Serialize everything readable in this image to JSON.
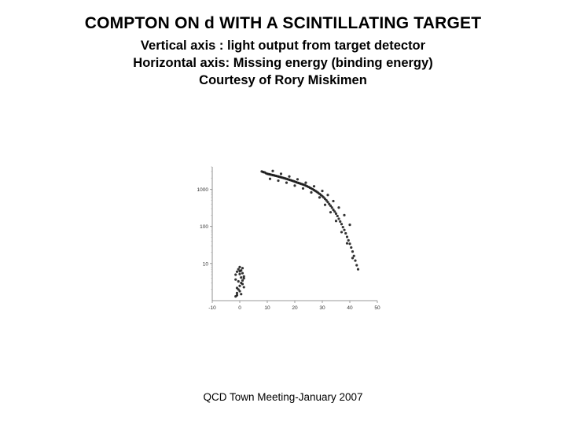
{
  "slide": {
    "title": "COMPTON ON d WITH A SCINTILLATING TARGET",
    "subtitle_lines": [
      "Vertical axis : light output from target detector",
      "Horizontal axis: Missing energy (binding energy)",
      "Courtesy of Rory Miskimen"
    ],
    "footer": "QCD Town Meeting-January 2007"
  },
  "chart_data": {
    "type": "scatter",
    "title": "",
    "xlabel": "",
    "ylabel": "",
    "xlim": [
      -10,
      50
    ],
    "ylim": [
      1,
      4000
    ],
    "y_scale": "log",
    "x_ticks": [
      -10,
      0,
      10,
      20,
      30,
      40,
      50
    ],
    "x_tick_labels": [
      "-10",
      "0",
      "10",
      "20",
      "30",
      "40",
      "50"
    ],
    "y_ticks": [
      10,
      100,
      1000
    ],
    "y_tick_labels": [
      "10",
      "100",
      "1000"
    ],
    "grid": false,
    "point_color": "#111111",
    "series": [
      {
        "values_xy": [
          [
            8,
            3000
          ],
          [
            8.5,
            2900
          ],
          [
            9,
            2850
          ],
          [
            9.5,
            2700
          ],
          [
            10,
            2600
          ],
          [
            10.5,
            2550
          ],
          [
            11,
            2500
          ],
          [
            11.5,
            2450
          ],
          [
            12,
            2400
          ],
          [
            12.5,
            2350
          ],
          [
            13,
            2300
          ],
          [
            13.5,
            2250
          ],
          [
            14,
            2200
          ],
          [
            14.5,
            2150
          ],
          [
            15,
            2100
          ],
          [
            15.5,
            2050
          ],
          [
            16,
            2000
          ],
          [
            16.5,
            1950
          ],
          [
            17,
            1900
          ],
          [
            17.5,
            1850
          ],
          [
            18,
            1800
          ],
          [
            18.5,
            1750
          ],
          [
            19,
            1700
          ],
          [
            19.5,
            1650
          ],
          [
            20,
            1600
          ],
          [
            20.5,
            1550
          ],
          [
            21,
            1500
          ],
          [
            21.5,
            1460
          ],
          [
            22,
            1420
          ],
          [
            22.5,
            1380
          ],
          [
            23,
            1340
          ],
          [
            23.5,
            1300
          ],
          [
            24,
            1250
          ],
          [
            24.5,
            1200
          ],
          [
            25,
            1150
          ],
          [
            25.5,
            1100
          ],
          [
            26,
            1050
          ],
          [
            26.5,
            1000
          ],
          [
            27,
            950
          ],
          [
            27.5,
            900
          ],
          [
            28,
            850
          ],
          [
            28.5,
            800
          ],
          [
            29,
            750
          ],
          [
            29.5,
            700
          ],
          [
            30,
            650
          ],
          [
            30.5,
            600
          ],
          [
            31,
            550
          ],
          [
            31.5,
            500
          ],
          [
            32,
            450
          ],
          [
            32.5,
            400
          ],
          [
            33,
            360
          ],
          [
            33.5,
            320
          ],
          [
            34,
            280
          ],
          [
            34.5,
            250
          ],
          [
            35,
            220
          ],
          [
            35.5,
            190
          ],
          [
            36,
            160
          ],
          [
            36.5,
            135
          ],
          [
            37,
            115
          ],
          [
            37.5,
            95
          ],
          [
            38,
            80
          ],
          [
            38.5,
            65
          ],
          [
            39,
            52
          ],
          [
            39.5,
            42
          ],
          [
            40,
            34
          ],
          [
            40.5,
            27
          ],
          [
            41,
            21
          ],
          [
            41.5,
            16
          ],
          [
            42,
            12
          ],
          [
            42.5,
            9
          ],
          [
            43,
            7
          ],
          [
            12,
            3100
          ],
          [
            15,
            2600
          ],
          [
            18,
            2200
          ],
          [
            21,
            1850
          ],
          [
            24,
            1500
          ],
          [
            27,
            1200
          ],
          [
            30,
            900
          ],
          [
            32,
            700
          ],
          [
            34,
            480
          ],
          [
            36,
            320
          ],
          [
            38,
            200
          ],
          [
            40,
            110
          ],
          [
            11,
            1900
          ],
          [
            14,
            1700
          ],
          [
            17,
            1500
          ],
          [
            20,
            1250
          ],
          [
            23,
            1050
          ],
          [
            26,
            820
          ],
          [
            29,
            600
          ],
          [
            31,
            380
          ],
          [
            33,
            240
          ],
          [
            35,
            140
          ],
          [
            37,
            70
          ],
          [
            39,
            35
          ],
          [
            41,
            14
          ],
          [
            -1.5,
            1.3
          ],
          [
            -1,
            1.6
          ],
          [
            -0.5,
            2
          ],
          [
            0,
            2.5
          ],
          [
            0.5,
            3
          ],
          [
            1,
            3.5
          ],
          [
            1.5,
            4
          ],
          [
            -1.5,
            5
          ],
          [
            -1,
            6
          ],
          [
            -0.5,
            7
          ],
          [
            0,
            8
          ],
          [
            0.5,
            6.5
          ],
          [
            1,
            5.5
          ],
          [
            1.5,
            4.5
          ],
          [
            -1,
            2.2
          ],
          [
            0,
            1.8
          ],
          [
            1,
            2.8
          ],
          [
            -0.5,
            3.3
          ],
          [
            0.5,
            4.2
          ],
          [
            0,
            5.2
          ],
          [
            -1,
            1.4
          ],
          [
            0.5,
            1.5
          ],
          [
            1.5,
            2.3
          ],
          [
            -1.5,
            3.7
          ],
          [
            0,
            6.2
          ],
          [
            1,
            7.5
          ]
        ]
      }
    ]
  }
}
